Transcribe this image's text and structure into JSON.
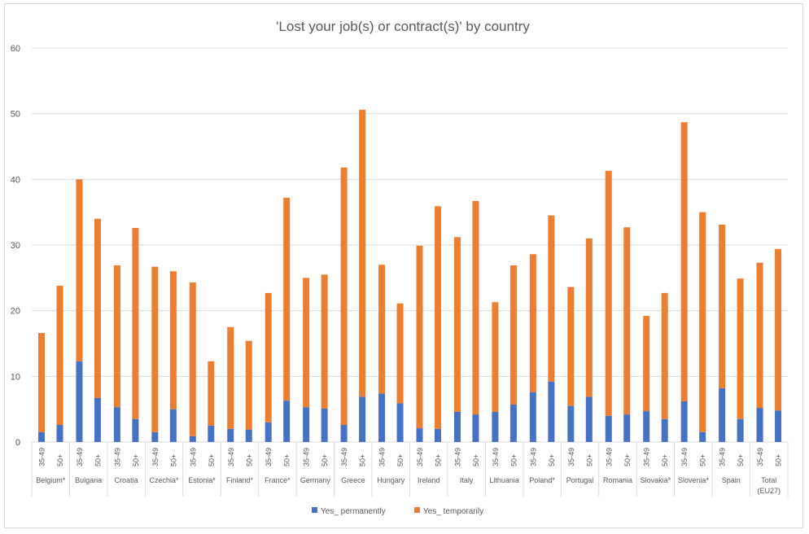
{
  "chart_data": {
    "type": "bar",
    "stacked": true,
    "title": "'Lost your job(s) or contract(s)' by country",
    "xlabel": "",
    "ylabel": "",
    "ylim": [
      0,
      60
    ],
    "yticks": [
      0,
      10,
      20,
      30,
      40,
      50,
      60
    ],
    "grid": true,
    "legend_position": "bottom",
    "colors": {
      "Yes_ permanently": "#4472c4",
      "Yes_ temporarily": "#ed7d31"
    },
    "groups": [
      "Belgium*",
      "Bulgaria",
      "Croatia",
      "Czechia*",
      "Estonia*",
      "Finland*",
      "France*",
      "Germany",
      "Greece",
      "Hungary",
      "Ireland",
      "Italy",
      "Lithuania",
      "Poland*",
      "Portugal",
      "Romania",
      "Slovakia*",
      "Slovenia*",
      "Spain",
      "Total (EU27)"
    ],
    "subcategories": [
      "35-49",
      "50+"
    ],
    "series": [
      {
        "name": "Yes_ permanently",
        "values": [
          1.5,
          2.6,
          12.3,
          6.7,
          5.3,
          3.5,
          1.5,
          5.0,
          0.9,
          2.5,
          2.0,
          1.9,
          3.0,
          6.3,
          5.3,
          5.1,
          2.6,
          6.9,
          7.4,
          5.9,
          2.1,
          2.0,
          4.6,
          4.2,
          4.6,
          5.7,
          7.6,
          9.2,
          5.5,
          6.9,
          4.0,
          4.2,
          4.7,
          3.5,
          6.2,
          1.5,
          8.2,
          3.5,
          5.2,
          4.8
        ]
      },
      {
        "name": "Yes_ temporarily",
        "values": [
          15.1,
          21.2,
          27.7,
          27.3,
          21.6,
          29.1,
          25.2,
          21.0,
          23.4,
          9.8,
          15.5,
          13.5,
          19.7,
          30.9,
          19.7,
          20.4,
          39.2,
          43.7,
          19.6,
          15.2,
          27.8,
          33.9,
          26.6,
          32.5,
          16.7,
          21.2,
          21.0,
          25.3,
          18.1,
          24.1,
          37.3,
          28.5,
          14.5,
          19.2,
          42.5,
          33.5,
          24.9,
          21.4,
          22.1,
          24.6
        ]
      }
    ]
  }
}
